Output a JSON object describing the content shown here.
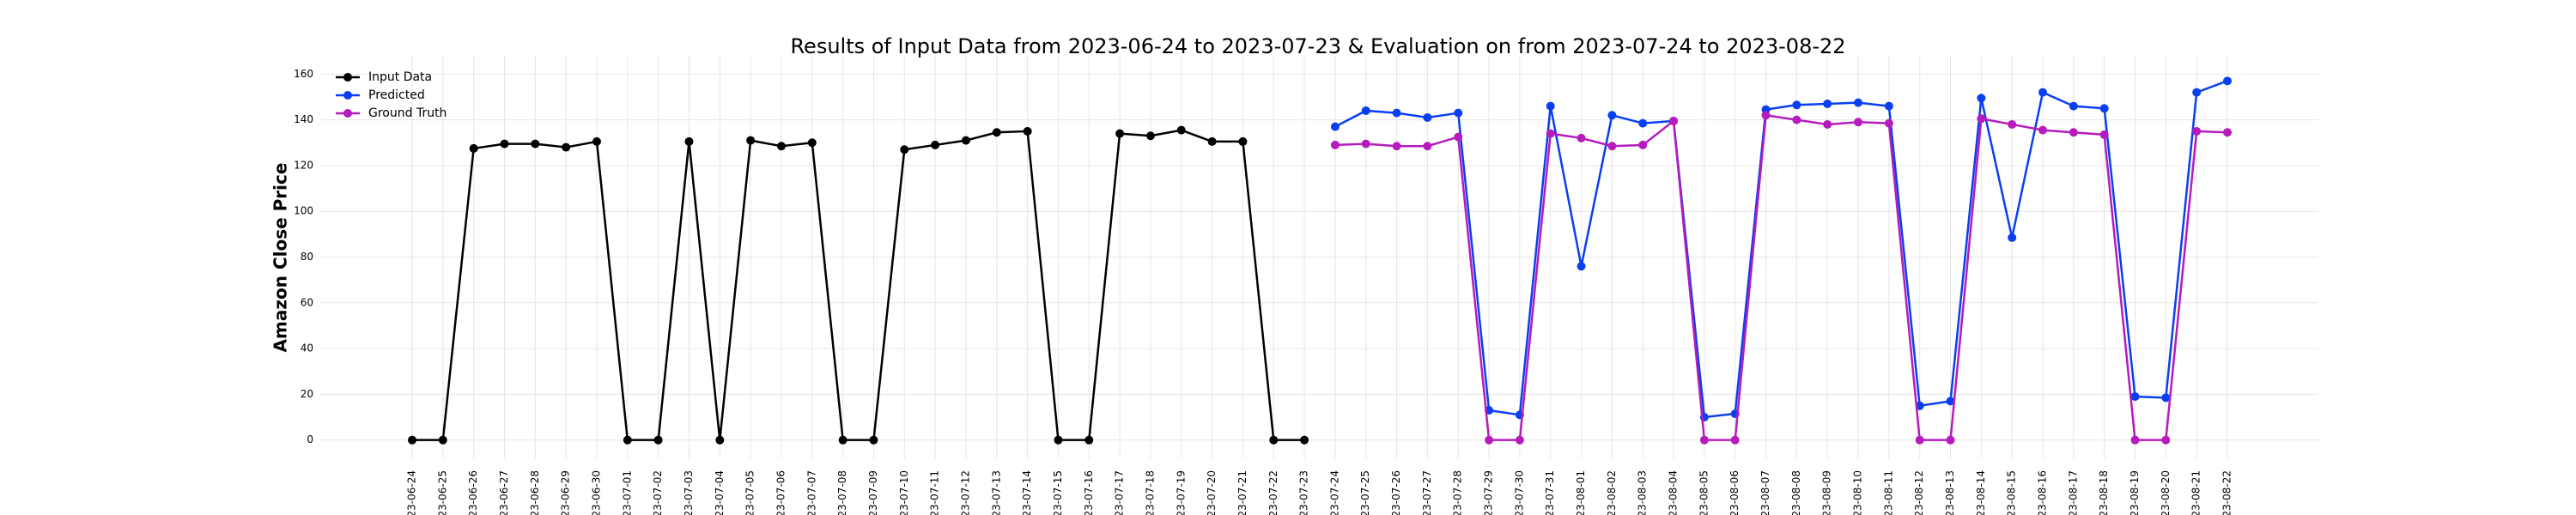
{
  "chart_data": {
    "type": "line",
    "title": "Results of Input Data from 2023-06-24 to 2023-07-23 & Evaluation on from 2023-07-24 to 2023-08-22",
    "ylabel": "Amazon Close Price",
    "x": [
      "2023-06-24",
      "2023-06-25",
      "2023-06-26",
      "2023-06-27",
      "2023-06-28",
      "2023-06-29",
      "2023-06-30",
      "2023-07-01",
      "2023-07-02",
      "2023-07-03",
      "2023-07-04",
      "2023-07-05",
      "2023-07-06",
      "2023-07-07",
      "2023-07-08",
      "2023-07-09",
      "2023-07-10",
      "2023-07-11",
      "2023-07-12",
      "2023-07-13",
      "2023-07-14",
      "2023-07-15",
      "2023-07-16",
      "2023-07-17",
      "2023-07-18",
      "2023-07-19",
      "2023-07-20",
      "2023-07-21",
      "2023-07-22",
      "2023-07-23",
      "2023-07-24",
      "2023-07-25",
      "2023-07-26",
      "2023-07-27",
      "2023-07-28",
      "2023-07-29",
      "2023-07-30",
      "2023-07-31",
      "2023-08-01",
      "2023-08-02",
      "2023-08-03",
      "2023-08-04",
      "2023-08-05",
      "2023-08-06",
      "2023-08-07",
      "2023-08-08",
      "2023-08-09",
      "2023-08-10",
      "2023-08-11",
      "2023-08-12",
      "2023-08-13",
      "2023-08-14",
      "2023-08-15",
      "2023-08-16",
      "2023-08-17",
      "2023-08-18",
      "2023-08-19",
      "2023-08-20",
      "2023-08-21",
      "2023-08-22"
    ],
    "series": [
      {
        "name": "Input Data",
        "color": "#000000",
        "values": [
          0,
          0,
          127.5,
          129.5,
          129.5,
          128,
          130.5,
          0,
          0,
          130.5,
          0,
          131,
          128.5,
          130,
          0,
          0,
          127,
          129,
          131,
          134.5,
          135,
          0,
          0,
          134,
          133,
          135.5,
          130.5,
          130.5,
          0,
          0,
          null,
          null,
          null,
          null,
          null,
          null,
          null,
          null,
          null,
          null,
          null,
          null,
          null,
          null,
          null,
          null,
          null,
          null,
          null,
          null,
          null,
          null,
          null,
          null,
          null,
          null,
          null,
          null,
          null,
          null
        ]
      },
      {
        "name": "Predicted",
        "color": "#0a3ff0",
        "values": [
          null,
          null,
          null,
          null,
          null,
          null,
          null,
          null,
          null,
          null,
          null,
          null,
          null,
          null,
          null,
          null,
          null,
          null,
          null,
          null,
          null,
          null,
          null,
          null,
          null,
          null,
          null,
          null,
          null,
          null,
          137,
          144,
          143,
          141,
          143,
          13,
          11,
          146,
          76,
          142,
          138.5,
          139.5,
          10,
          11.5,
          144.5,
          146.5,
          147,
          147.5,
          146,
          15,
          17,
          149.5,
          88.5,
          152,
          146,
          145,
          19,
          18.5,
          152,
          157
        ]
      },
      {
        "name": "Ground Truth",
        "color": "#b51bbd",
        "values": [
          null,
          null,
          null,
          null,
          null,
          null,
          null,
          null,
          null,
          null,
          null,
          null,
          null,
          null,
          null,
          null,
          null,
          null,
          null,
          null,
          null,
          null,
          null,
          null,
          null,
          null,
          null,
          null,
          null,
          null,
          129,
          129.5,
          128.5,
          128.5,
          132.5,
          0,
          0,
          134,
          132,
          128.5,
          129,
          139.5,
          0,
          0,
          142,
          140,
          138,
          139,
          138.5,
          0,
          0,
          140.5,
          138,
          135.5,
          134.5,
          133.5,
          0,
          0,
          135,
          134.5
        ]
      }
    ],
    "ylim": [
      -8,
      168
    ],
    "yticks": [
      0,
      20,
      40,
      60,
      80,
      100,
      120,
      140,
      160
    ],
    "grid": true,
    "legend": "upper left"
  }
}
